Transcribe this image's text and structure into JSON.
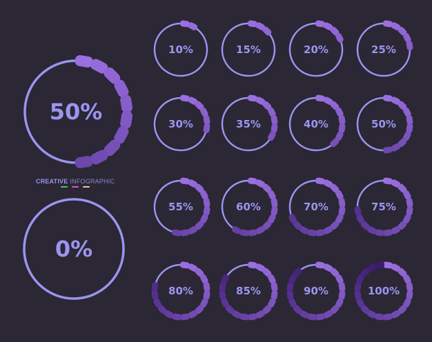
{
  "legend": {
    "word1": "CREATIVE",
    "word2": "INFOGRAPHIC",
    "line_colors": [
      "#4fc36b",
      "#d65bd1",
      "#e8c991"
    ]
  },
  "colors": {
    "background": "#2b2734",
    "ring": "#9a95f0",
    "text": "#9a95f0",
    "segment_light": "#9a6fe0",
    "segment_dark": "#3c1a72"
  },
  "gauges": [
    {
      "label": "50%",
      "value": 50
    },
    {
      "label": "0%",
      "value": 0
    },
    {
      "label": "10%",
      "value": 10
    },
    {
      "label": "15%",
      "value": 15
    },
    {
      "label": "20%",
      "value": 20
    },
    {
      "label": "25%",
      "value": 25
    },
    {
      "label": "30%",
      "value": 30
    },
    {
      "label": "35%",
      "value": 35
    },
    {
      "label": "40%",
      "value": 40
    },
    {
      "label": "50%",
      "value": 50
    },
    {
      "label": "55%",
      "value": 55
    },
    {
      "label": "60%",
      "value": 60
    },
    {
      "label": "70%",
      "value": 70
    },
    {
      "label": "75%",
      "value": 75
    },
    {
      "label": "80%",
      "value": 80
    },
    {
      "label": "85%",
      "value": 85
    },
    {
      "label": "90%",
      "value": 90
    },
    {
      "label": "100%",
      "value": 100
    }
  ]
}
